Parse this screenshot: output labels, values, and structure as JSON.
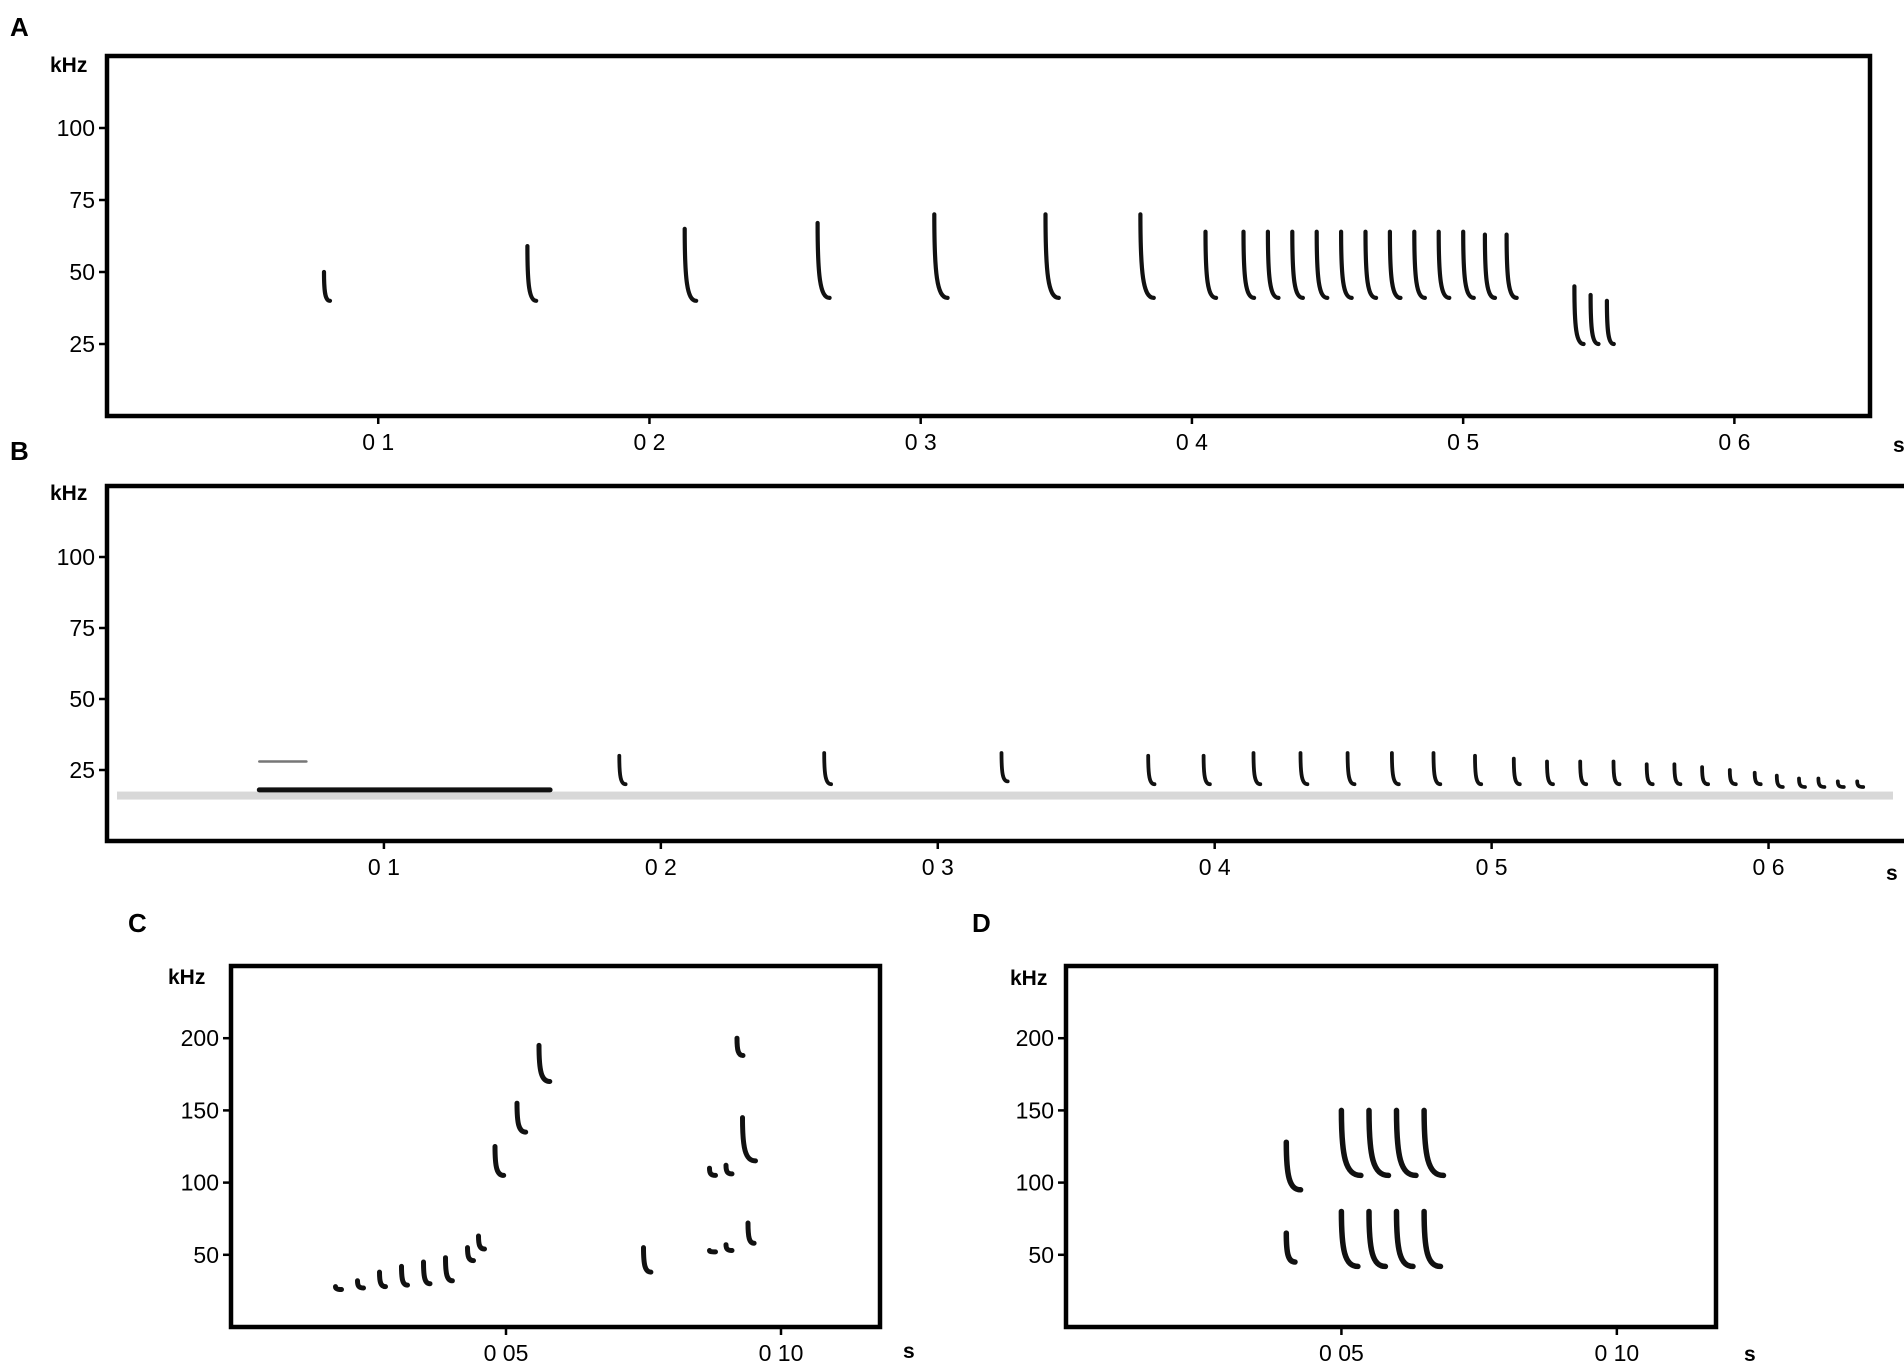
{
  "chart_data": [
    {
      "panel": "A",
      "type": "scatter",
      "ylabel": "kHz",
      "xlabel": "s",
      "xlim": [
        0,
        0.65
      ],
      "ylim": [
        0,
        125
      ],
      "xticks": [
        0.1,
        0.2,
        0.3,
        0.4,
        0.5,
        0.6
      ],
      "xtick_labels": [
        "0 1",
        "0 2",
        "0 3",
        "0 4",
        "0 5",
        "0 6"
      ],
      "yticks": [
        25,
        50,
        75,
        100
      ],
      "ytick_labels": [
        "25",
        "50",
        "75",
        "100"
      ],
      "calls": [
        {
          "t": 0.08,
          "f_start": 50,
          "f_end": 40
        },
        {
          "t": 0.155,
          "f_start": 59,
          "f_end": 40
        },
        {
          "t": 0.213,
          "f_start": 65,
          "f_end": 40
        },
        {
          "t": 0.262,
          "f_start": 67,
          "f_end": 41
        },
        {
          "t": 0.305,
          "f_start": 70,
          "f_end": 41
        },
        {
          "t": 0.346,
          "f_start": 70,
          "f_end": 41
        },
        {
          "t": 0.381,
          "f_start": 70,
          "f_end": 41
        },
        {
          "t": 0.405,
          "f_start": 64,
          "f_end": 41
        },
        {
          "t": 0.419,
          "f_start": 64,
          "f_end": 41
        },
        {
          "t": 0.428,
          "f_start": 64,
          "f_end": 41
        },
        {
          "t": 0.437,
          "f_start": 64,
          "f_end": 41
        },
        {
          "t": 0.446,
          "f_start": 64,
          "f_end": 41
        },
        {
          "t": 0.455,
          "f_start": 64,
          "f_end": 41
        },
        {
          "t": 0.464,
          "f_start": 64,
          "f_end": 41
        },
        {
          "t": 0.473,
          "f_start": 64,
          "f_end": 41
        },
        {
          "t": 0.482,
          "f_start": 64,
          "f_end": 41
        },
        {
          "t": 0.491,
          "f_start": 64,
          "f_end": 41
        },
        {
          "t": 0.5,
          "f_start": 64,
          "f_end": 41
        },
        {
          "t": 0.508,
          "f_start": 63,
          "f_end": 41
        },
        {
          "t": 0.516,
          "f_start": 63,
          "f_end": 41
        },
        {
          "t": 0.541,
          "f_start": 45,
          "f_end": 25
        },
        {
          "t": 0.547,
          "f_start": 42,
          "f_end": 25
        },
        {
          "t": 0.553,
          "f_start": 40,
          "f_end": 25
        }
      ]
    },
    {
      "panel": "B",
      "type": "scatter",
      "ylabel": "kHz",
      "xlabel": "s",
      "xlim": [
        0,
        0.65
      ],
      "ylim": [
        0,
        125
      ],
      "xticks": [
        0.1,
        0.2,
        0.3,
        0.4,
        0.5,
        0.6
      ],
      "xtick_labels": [
        "0 1",
        "0 2",
        "0 3",
        "0 4",
        "0 5",
        "0 6"
      ],
      "yticks": [
        25,
        50,
        75,
        100
      ],
      "ytick_labels": [
        "25",
        "50",
        "75",
        "100"
      ],
      "calls": [
        {
          "t": 0.185,
          "f_start": 30,
          "f_end": 20
        },
        {
          "t": 0.259,
          "f_start": 31,
          "f_end": 20
        },
        {
          "t": 0.323,
          "f_start": 31,
          "f_end": 21
        },
        {
          "t": 0.376,
          "f_start": 30,
          "f_end": 20
        },
        {
          "t": 0.396,
          "f_start": 30,
          "f_end": 20
        },
        {
          "t": 0.414,
          "f_start": 31,
          "f_end": 20
        },
        {
          "t": 0.431,
          "f_start": 31,
          "f_end": 20
        },
        {
          "t": 0.448,
          "f_start": 31,
          "f_end": 20
        },
        {
          "t": 0.464,
          "f_start": 31,
          "f_end": 20
        },
        {
          "t": 0.479,
          "f_start": 31,
          "f_end": 20
        },
        {
          "t": 0.494,
          "f_start": 30,
          "f_end": 20
        },
        {
          "t": 0.508,
          "f_start": 29,
          "f_end": 20
        },
        {
          "t": 0.52,
          "f_start": 28,
          "f_end": 20
        },
        {
          "t": 0.532,
          "f_start": 28,
          "f_end": 20
        },
        {
          "t": 0.544,
          "f_start": 28,
          "f_end": 20
        },
        {
          "t": 0.556,
          "f_start": 27,
          "f_end": 20
        },
        {
          "t": 0.566,
          "f_start": 27,
          "f_end": 20
        },
        {
          "t": 0.576,
          "f_start": 26,
          "f_end": 20
        },
        {
          "t": 0.586,
          "f_start": 25,
          "f_end": 20
        },
        {
          "t": 0.595,
          "f_start": 24,
          "f_end": 20
        },
        {
          "t": 0.603,
          "f_start": 23,
          "f_end": 19
        },
        {
          "t": 0.611,
          "f_start": 22,
          "f_end": 19
        },
        {
          "t": 0.618,
          "f_start": 22,
          "f_end": 19
        },
        {
          "t": 0.625,
          "f_start": 21,
          "f_end": 19
        },
        {
          "t": 0.632,
          "f_start": 21,
          "f_end": 19
        }
      ],
      "tonal_segments": [
        {
          "t_start": 0.055,
          "t_end": 0.16,
          "f": 18
        },
        {
          "t_start": 0.055,
          "t_end": 0.072,
          "f": 28
        }
      ],
      "noise_band_khz": 16
    },
    {
      "panel": "C",
      "type": "scatter",
      "ylabel": "kHz",
      "xlabel": "s",
      "xlim": [
        0,
        0.118
      ],
      "ylim": [
        0,
        250
      ],
      "xticks": [
        0.05,
        0.1
      ],
      "xtick_labels": [
        "0 05",
        "0 10"
      ],
      "yticks": [
        50,
        100,
        150,
        200
      ],
      "ytick_labels": [
        "50",
        "100",
        "150",
        "200"
      ],
      "calls": [
        {
          "t": 0.019,
          "f_start": 28,
          "f_end": 26
        },
        {
          "t": 0.023,
          "f_start": 32,
          "f_end": 27
        },
        {
          "t": 0.027,
          "f_start": 38,
          "f_end": 28
        },
        {
          "t": 0.031,
          "f_start": 42,
          "f_end": 29
        },
        {
          "t": 0.035,
          "f_start": 45,
          "f_end": 30
        },
        {
          "t": 0.039,
          "f_start": 48,
          "f_end": 32
        },
        {
          "t": 0.043,
          "f_start": 55,
          "f_end": 46
        },
        {
          "t": 0.045,
          "f_start": 63,
          "f_end": 54
        },
        {
          "t": 0.048,
          "f_start": 125,
          "f_end": 105
        },
        {
          "t": 0.052,
          "f_start": 155,
          "f_end": 135
        },
        {
          "t": 0.056,
          "f_start": 195,
          "f_end": 170
        },
        {
          "t": 0.075,
          "f_start": 55,
          "f_end": 38
        },
        {
          "t": 0.087,
          "f_start": 110,
          "f_end": 105
        },
        {
          "t": 0.09,
          "f_start": 112,
          "f_end": 106
        },
        {
          "t": 0.093,
          "f_start": 145,
          "f_end": 115
        },
        {
          "t": 0.087,
          "f_start": 53,
          "f_end": 52
        },
        {
          "t": 0.09,
          "f_start": 57,
          "f_end": 53
        },
        {
          "t": 0.094,
          "f_start": 72,
          "f_end": 58
        },
        {
          "t": 0.092,
          "f_start": 200,
          "f_end": 188
        }
      ]
    },
    {
      "panel": "D",
      "type": "scatter",
      "ylabel": "kHz",
      "xlabel": "s",
      "xlim": [
        0,
        0.118
      ],
      "ylim": [
        0,
        250
      ],
      "xticks": [
        0.05,
        0.1
      ],
      "xtick_labels": [
        "0 05",
        "0 10"
      ],
      "yticks": [
        50,
        100,
        150,
        200
      ],
      "ytick_labels": [
        "50",
        "100",
        "150",
        "200"
      ],
      "calls": [
        {
          "t": 0.04,
          "f_start": 65,
          "f_end": 45
        },
        {
          "t": 0.04,
          "f_start": 128,
          "f_end": 95
        },
        {
          "t": 0.05,
          "f_start": 80,
          "f_end": 42
        },
        {
          "t": 0.055,
          "f_start": 80,
          "f_end": 42
        },
        {
          "t": 0.06,
          "f_start": 80,
          "f_end": 42
        },
        {
          "t": 0.065,
          "f_start": 80,
          "f_end": 42
        },
        {
          "t": 0.05,
          "f_start": 150,
          "f_end": 105
        },
        {
          "t": 0.055,
          "f_start": 150,
          "f_end": 105
        },
        {
          "t": 0.06,
          "f_start": 150,
          "f_end": 105
        },
        {
          "t": 0.065,
          "f_start": 150,
          "f_end": 105
        }
      ]
    }
  ]
}
